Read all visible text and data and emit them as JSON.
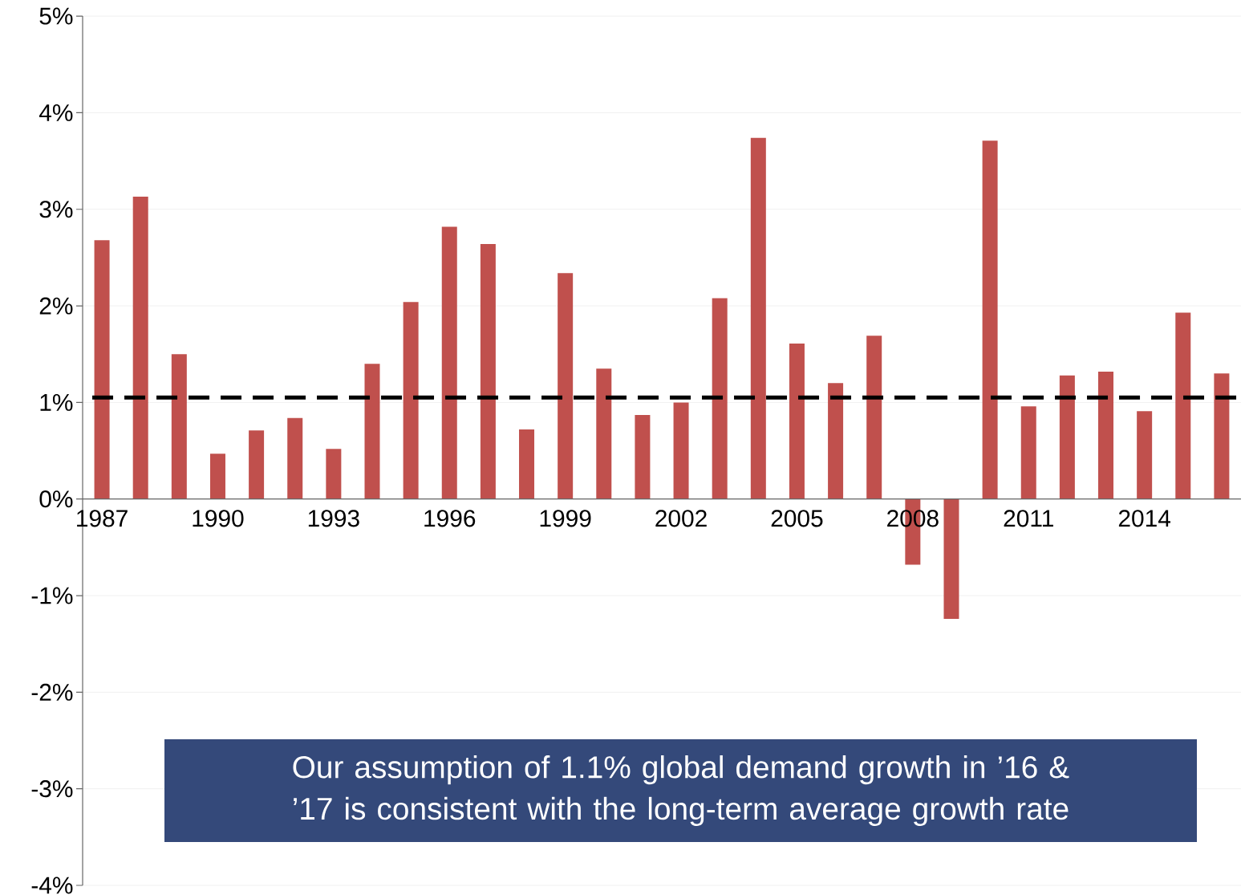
{
  "chart_data": {
    "type": "bar",
    "categories": [
      "1987",
      null,
      null,
      "1990",
      null,
      null,
      "1993",
      null,
      null,
      "1996",
      null,
      null,
      "1999",
      null,
      null,
      "2002",
      null,
      null,
      "2005",
      null,
      null,
      "2008",
      null,
      null,
      "2011",
      null,
      null,
      "2014",
      null,
      null
    ],
    "values": [
      2.68,
      3.13,
      1.5,
      0.47,
      0.71,
      0.84,
      0.52,
      1.4,
      2.04,
      2.82,
      2.64,
      0.72,
      2.34,
      1.35,
      0.87,
      1.0,
      2.08,
      3.74,
      1.61,
      1.2,
      1.69,
      -0.68,
      -1.24,
      3.71,
      0.96,
      1.28,
      1.32,
      0.91,
      1.93,
      1.3
    ],
    "color": "#c0504d",
    "ylim": [
      -4,
      5
    ],
    "yticks": [
      {
        "value": -4,
        "label": "-4%"
      },
      {
        "value": -3,
        "label": "-3%"
      },
      {
        "value": -2,
        "label": "-2%"
      },
      {
        "value": -1,
        "label": "-1%"
      },
      {
        "value": 0,
        "label": "0%"
      },
      {
        "value": 1,
        "label": "1%"
      },
      {
        "value": 2,
        "label": "2%"
      },
      {
        "value": 3,
        "label": "3%"
      },
      {
        "value": 4,
        "label": "4%"
      },
      {
        "value": 5,
        "label": "5%"
      }
    ],
    "grid": "y",
    "ref_lines": [
      {
        "axis": "y",
        "value": 1.05,
        "color": "#000000",
        "line_style": "dashed"
      }
    ],
    "annotations": [
      "Our assumption of 1.1% global demand growth in ’16 & ’17 is consistent with the long-term average growth rate"
    ]
  }
}
